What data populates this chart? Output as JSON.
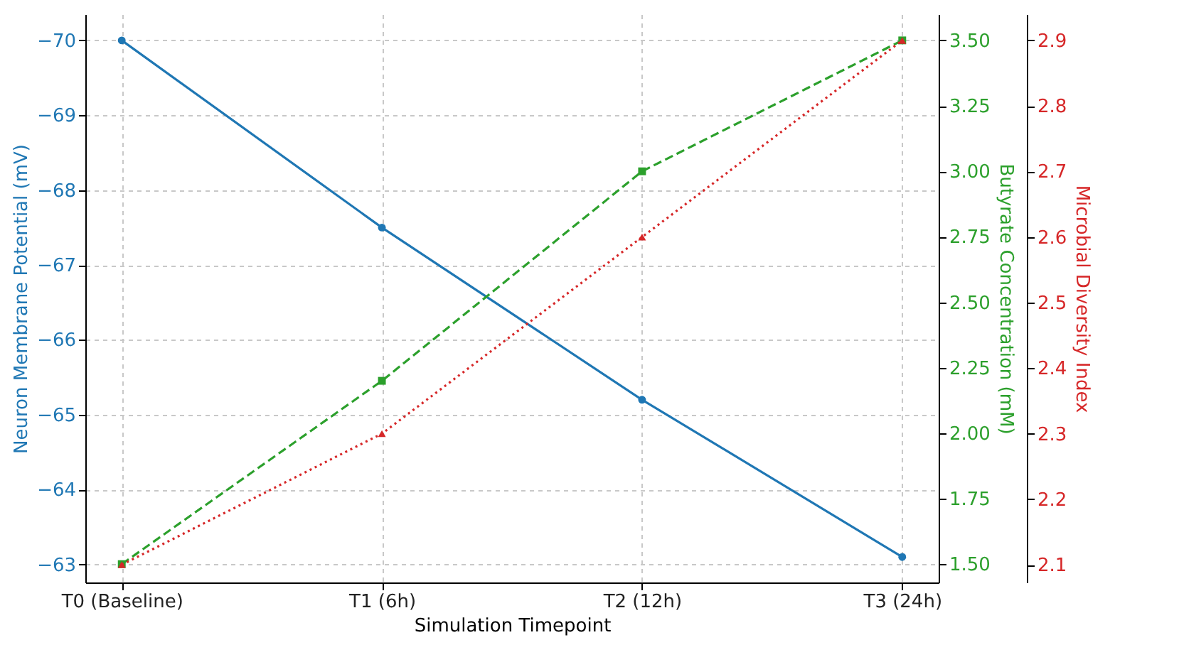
{
  "chart_data": {
    "type": "line",
    "xlabel": "Simulation Timepoint",
    "ylabel": "Neuron Membrane Potential (mV)",
    "y2label": "Butyrate Concentration (mM)",
    "y3label": "Microbial Diversity Index",
    "categories": [
      "T0 (Baseline)",
      "T1 (6h)",
      "T2 (12h)",
      "T3 (24h)"
    ],
    "series": [
      {
        "color": "#1f77b4",
        "values": [
          -70,
          -67.5,
          -65.2,
          -63.1
        ],
        "marker": "circle",
        "line_style": "solid"
      },
      {
        "color": "#2ca02c",
        "values": [
          1.5,
          2.2,
          3.0,
          3.5
        ],
        "marker": "square",
        "line_style": "dashed",
        "axis": "y2"
      },
      {
        "color": "#d62728",
        "values": [
          2.1,
          2.3,
          2.6,
          2.9
        ],
        "marker": "triangle",
        "line_style": "dotted",
        "axis": "y3"
      }
    ],
    "ylim": [
      -62.76,
      -70.35
    ],
    "yticks": [
      -70,
      -69,
      -68,
      -67,
      -66,
      -65,
      -64,
      -63
    ],
    "y2lim": [
      1.43,
      3.6
    ],
    "y2ticks": [
      {
        "value": 1.5,
        "label": "1.50"
      },
      {
        "value": 1.75,
        "label": "1.75"
      },
      {
        "value": 2.0,
        "label": "2.00"
      },
      {
        "value": 2.25,
        "label": "2.25"
      },
      {
        "value": 2.5,
        "label": "2.50"
      },
      {
        "value": 2.75,
        "label": "2.75"
      },
      {
        "value": 3.0,
        "label": "3.00"
      },
      {
        "value": 3.25,
        "label": "3.25"
      },
      {
        "value": 3.5,
        "label": "3.50"
      }
    ],
    "y3lim": [
      2.073,
      2.94
    ],
    "y3ticks": [
      2.1,
      2.2,
      2.3,
      2.4,
      2.5,
      2.6,
      2.7,
      2.8,
      2.9
    ],
    "grid": true
  }
}
